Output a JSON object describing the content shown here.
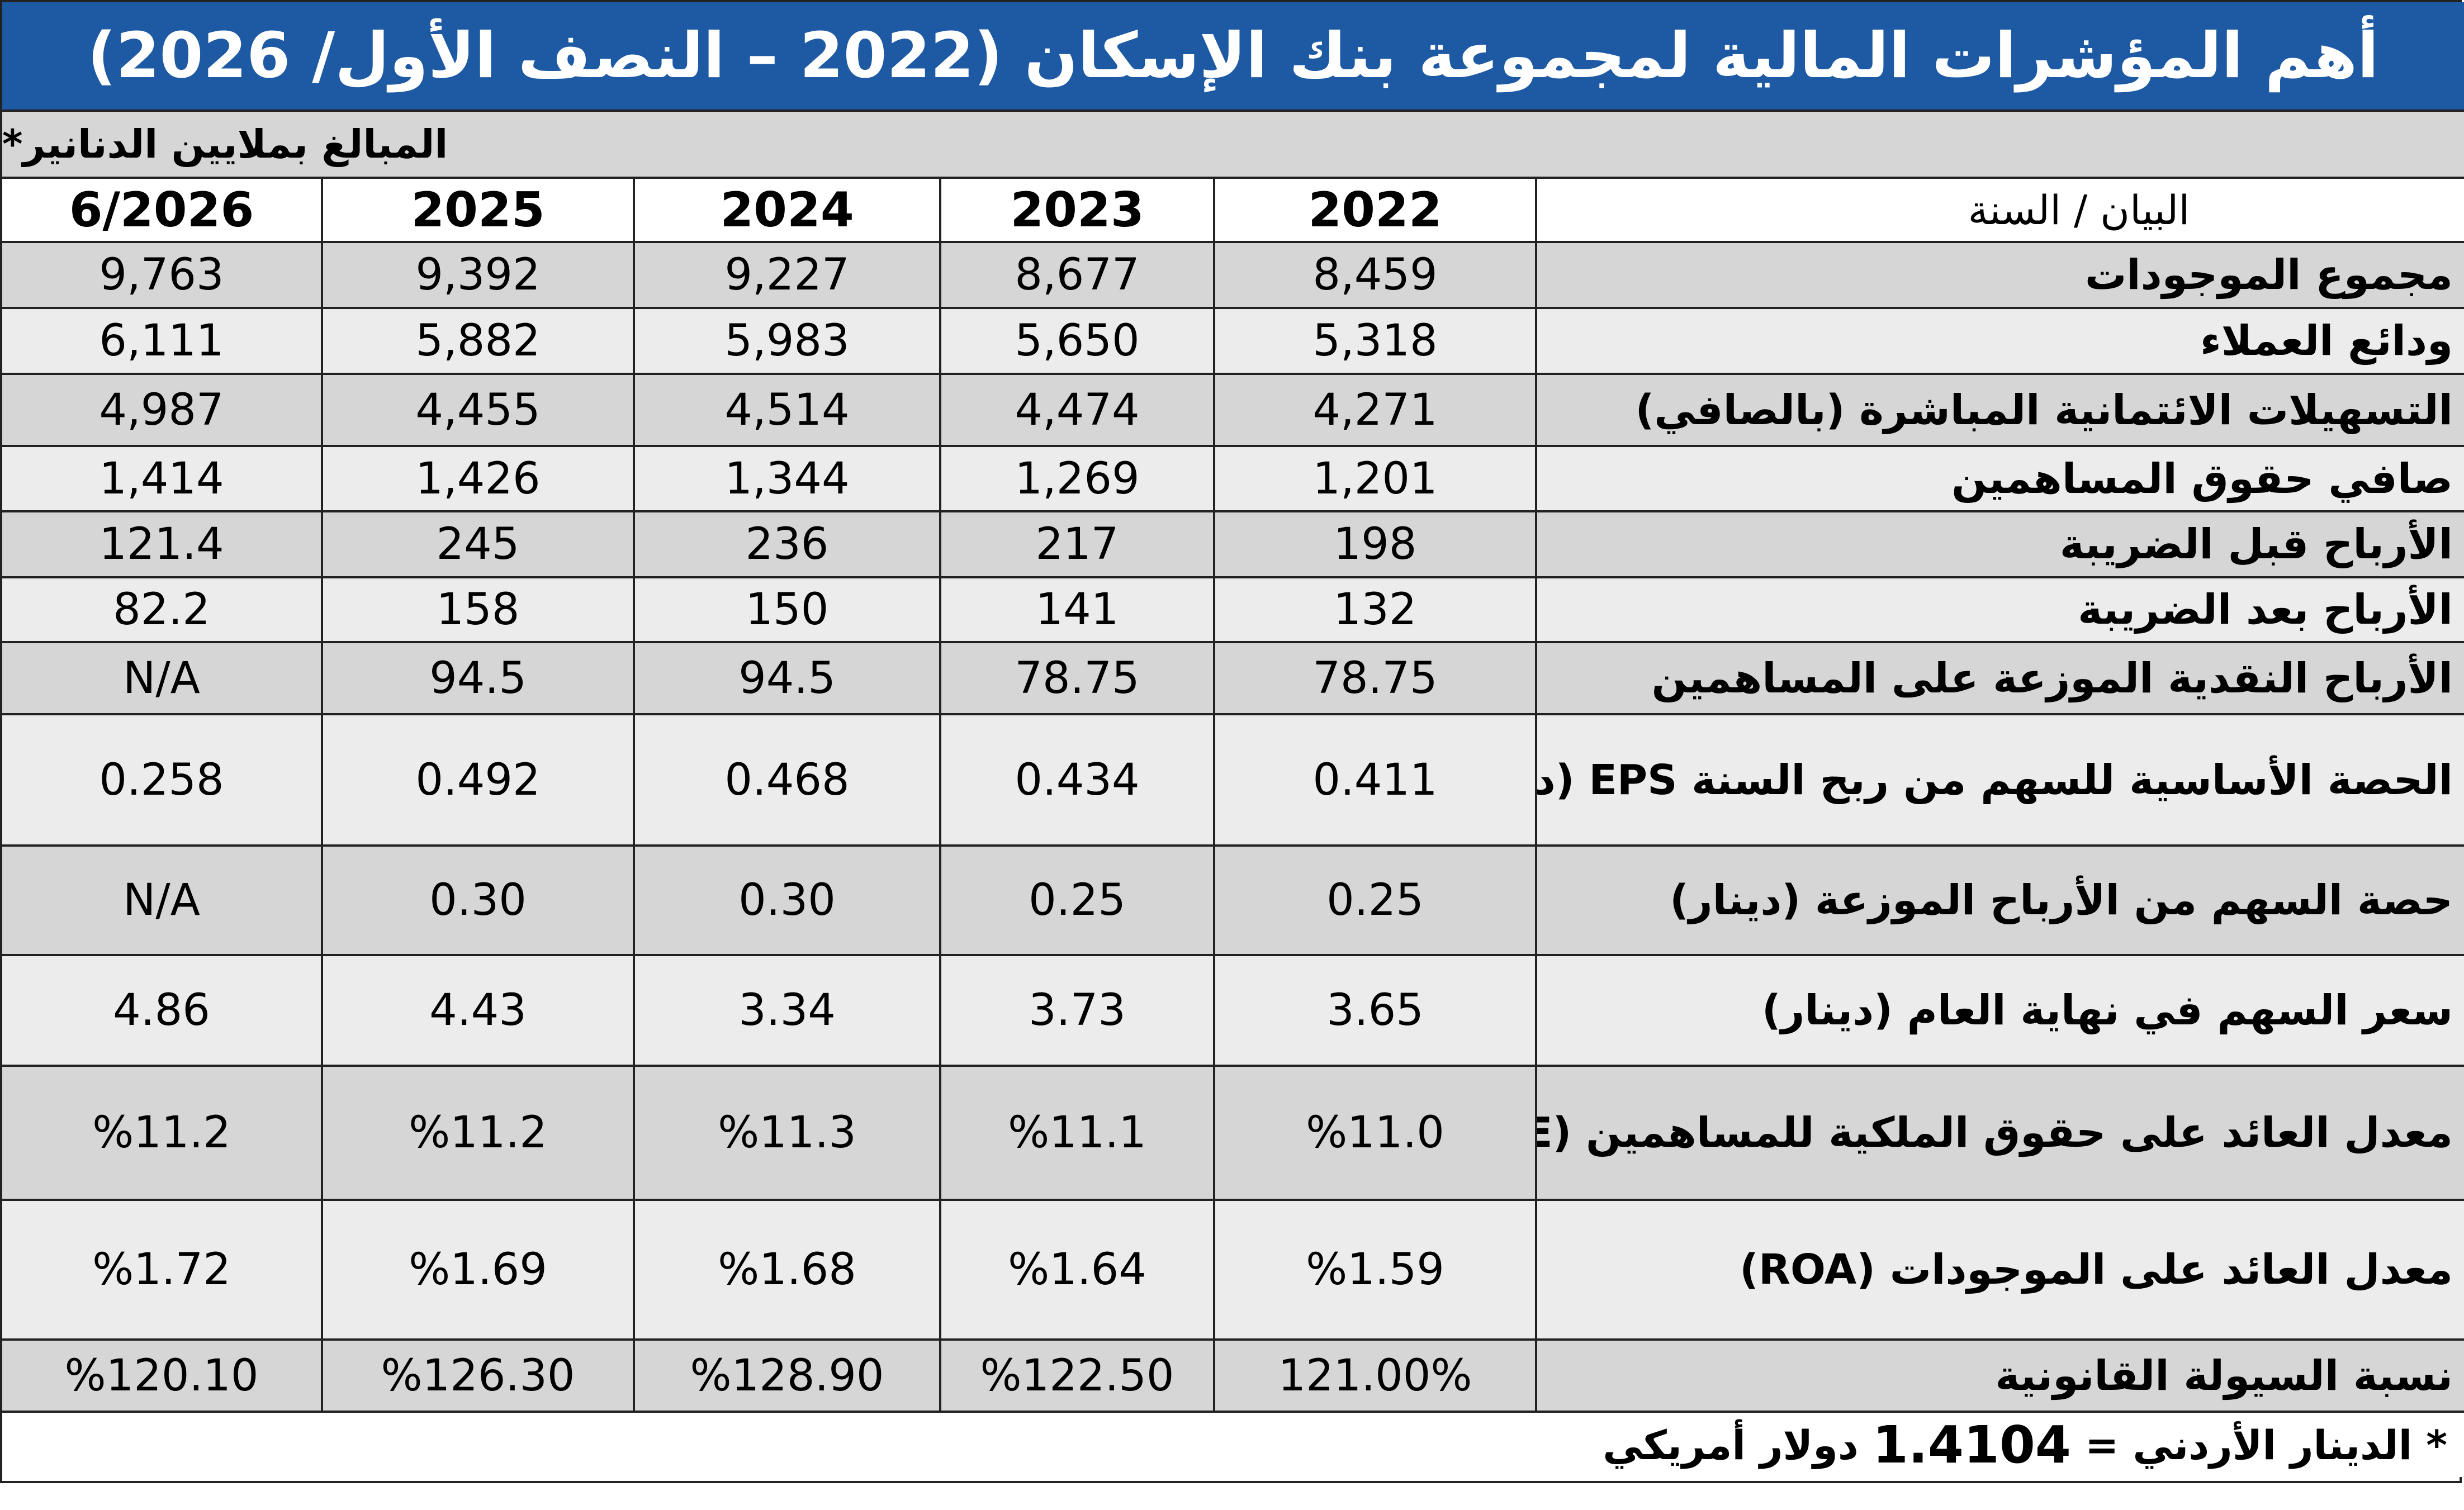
{
  "title": "أهم المؤشرات المالية لمجموعة بنك الإسكان (2022 – النصف الأول/ 2026)",
  "unit_note": "المبالغ بملايين الدنانير*",
  "header": {
    "label": "البيان / السنة",
    "years": [
      "2022",
      "2023",
      "2024",
      "2025",
      "6/2026"
    ]
  },
  "rows": [
    {
      "label": "مجموع الموجودات",
      "values": [
        "8,459",
        "8,677",
        "9,227",
        "9,392",
        "9,763"
      ]
    },
    {
      "label": "ودائع العملاء",
      "values": [
        "5,318",
        "5,650",
        "5,983",
        "5,882",
        "6,111"
      ]
    },
    {
      "label": "التسهيلات الائتمانية المباشرة (بالصافي)",
      "values": [
        "4,271",
        "4,474",
        "4,514",
        "4,455",
        "4,987"
      ]
    },
    {
      "label": "صافي حقوق المساهمين",
      "values": [
        "1,201",
        "1,269",
        "1,344",
        "1,426",
        "1,414"
      ]
    },
    {
      "label": "الأرباح قبل الضريبة",
      "values": [
        "198",
        "217",
        "236",
        "245",
        "121.4"
      ]
    },
    {
      "label": "الأرباح بعد الضريبة",
      "values": [
        "132",
        "141",
        "150",
        "158",
        "82.2"
      ]
    },
    {
      "label": "الأرباح النقدية الموزعة على المساهمين",
      "values": [
        "78.75",
        "78.75",
        "94.5",
        "94.5",
        "N/A"
      ]
    },
    {
      "label": "الحصة الأساسية للسهم من ربح السنة EPS (دينار)",
      "values": [
        "0.411",
        "0.434",
        "0.468",
        "0.492",
        "0.258"
      ]
    },
    {
      "label": "حصة السهم من الأرباح الموزعة (دينار)",
      "values": [
        "0.25",
        "0.25",
        "0.30",
        "0.30",
        "N/A"
      ]
    },
    {
      "label": "سعر السهم في نهاية العام (دينار)",
      "values": [
        "3.65",
        "3.73",
        "3.34",
        "4.43",
        "4.86"
      ]
    },
    {
      "label": "معدل العائد على حقوق الملكية للمساهمين (ROE)",
      "values": [
        "%11.0",
        "%11.1",
        "%11.3",
        "%11.2",
        "%11.2"
      ]
    },
    {
      "label": "معدل العائد على الموجودات (ROA)",
      "values": [
        "%1.59",
        "%1.64",
        "%1.68",
        "%1.69",
        "%1.72"
      ]
    },
    {
      "label": "نسبة السيولة القانونية",
      "values": [
        "121.00%",
        "%122.50",
        "%128.90",
        "%126.30",
        "%120.10"
      ]
    }
  ],
  "footer": {
    "prefix": "* الدينار الأردني =",
    "rate": "1.4104",
    "suffix": "دولار أمريكي"
  },
  "colors": {
    "title_bg": "#1e5aa3",
    "shaded_row": "#d6d6d6",
    "light_row": "#ececec"
  }
}
